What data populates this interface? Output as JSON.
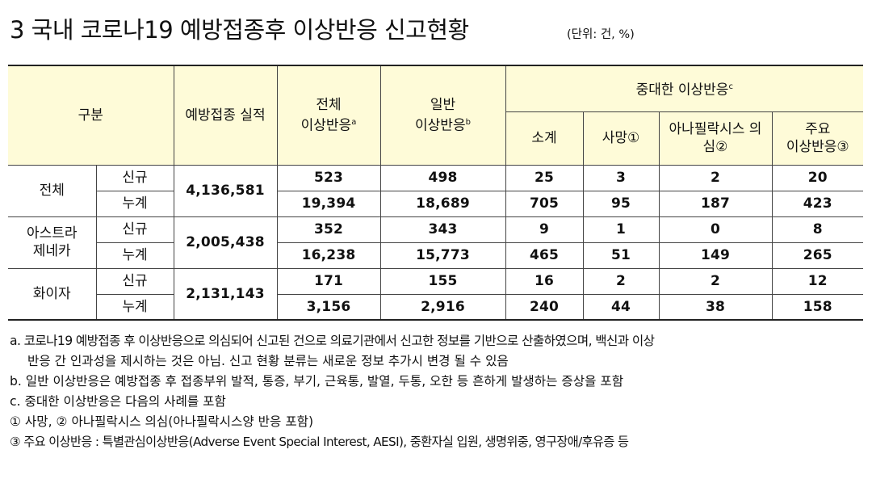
{
  "title": "3  국내 코로나19 예방접종후 이상반응 신고현황",
  "unit": "(단위: 건, %)",
  "header": {
    "category": "구분",
    "performance": "예방접종 실적",
    "total_label_1": "전체",
    "total_label_2": "이상반응",
    "total_sup": "a",
    "general_label_1": "일반",
    "general_label_2": "이상반응",
    "general_sup": "b",
    "severe_label": "중대한 이상반응",
    "severe_sup": "c",
    "sub_subtotal": "소계",
    "sub_death": "사망①",
    "sub_anaphylaxis": "아나필락시스 의심②",
    "sub_major_1": "주요",
    "sub_major_2": "이상반응③"
  },
  "rows": [
    {
      "group": "전체",
      "performance": "4,136,581",
      "new": {
        "label": "신규",
        "total": "523",
        "general": "498",
        "subtotal": "25",
        "death": "3",
        "anaphylaxis": "2",
        "major": "20"
      },
      "cum": {
        "label": "누계",
        "total": "19,394",
        "general": "18,689",
        "subtotal": "705",
        "death": "95",
        "anaphylaxis": "187",
        "major": "423"
      }
    },
    {
      "group_1": "아스트라",
      "group_2": "제네카",
      "performance": "2,005,438",
      "new": {
        "label": "신규",
        "total": "352",
        "general": "343",
        "subtotal": "9",
        "death": "1",
        "anaphylaxis": "0",
        "major": "8"
      },
      "cum": {
        "label": "누계",
        "total": "16,238",
        "general": "15,773",
        "subtotal": "465",
        "death": "51",
        "anaphylaxis": "149",
        "major": "265"
      }
    },
    {
      "group": "화이자",
      "performance": "2,131,143",
      "new": {
        "label": "신규",
        "total": "171",
        "general": "155",
        "subtotal": "16",
        "death": "2",
        "anaphylaxis": "2",
        "major": "12"
      },
      "cum": {
        "label": "누계",
        "total": "3,156",
        "general": "2,916",
        "subtotal": "240",
        "death": "44",
        "anaphylaxis": "38",
        "major": "158"
      }
    }
  ],
  "notes": {
    "a_1": "a. 코로나19 예방접종 후 이상반응으로 의심되어 신고된 건으로 의료기관에서 신고한 정보를 기반으로 산출하였으며, 백신과 이상",
    "a_2": "반응 간 인과성을 제시하는 것은 아님. 신고 현황 분류는 새로운 정보 추가시 변경 될 수 있음",
    "b": "b. 일반 이상반응은 예방접종 후 접종부위 발적, 통증, 부기, 근육통, 발열, 두통, 오한 등 흔하게 발생하는 증상을 포함",
    "c": "c. 중대한 이상반응은 다음의 사례를 포함",
    "c1": "① 사망, ② 아나필락시스 의심(아나필락시스양 반응 포함)",
    "c2": "③ 주요 이상반응 : 특별관심이상반응(Adverse Event Special Interest, AESI), 중환자실 입원, 생명위중, 영구장애/후유증 등"
  }
}
